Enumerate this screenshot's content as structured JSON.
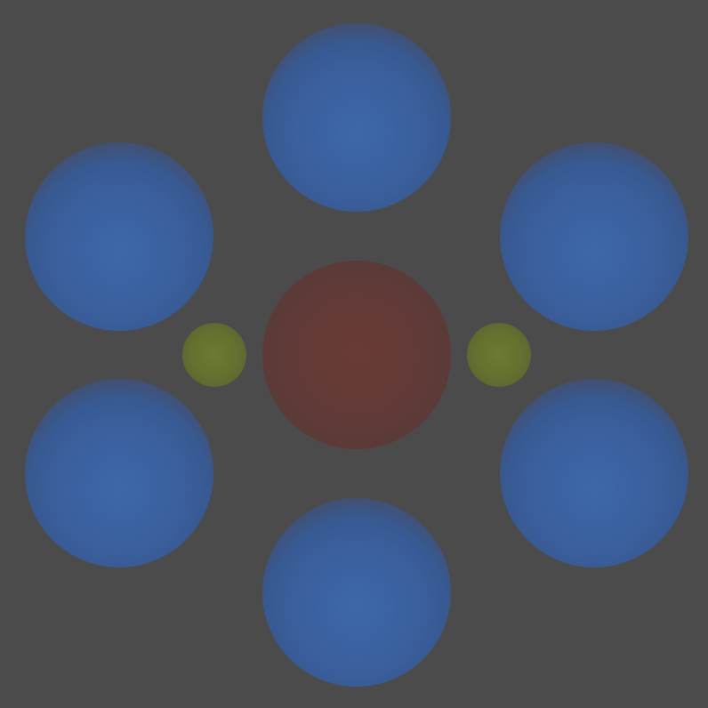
{
  "scene": {
    "background_color": "#4b4b4b",
    "spheres": [
      {
        "id": "blue-top",
        "color": "#3a5f9c",
        "kind": "large"
      },
      {
        "id": "blue-upper-left",
        "color": "#3a5f9c",
        "kind": "large"
      },
      {
        "id": "blue-upper-right",
        "color": "#3a5f9c",
        "kind": "large"
      },
      {
        "id": "blue-lower-left",
        "color": "#3a5f9c",
        "kind": "large"
      },
      {
        "id": "blue-lower-right",
        "color": "#3a5f9c",
        "kind": "large"
      },
      {
        "id": "blue-bottom",
        "color": "#3a5f9c",
        "kind": "large"
      },
      {
        "id": "red-center",
        "color": "#623a37",
        "kind": "large"
      },
      {
        "id": "green-left",
        "color": "#64712f",
        "kind": "small"
      },
      {
        "id": "green-right",
        "color": "#64712f",
        "kind": "small"
      }
    ]
  }
}
